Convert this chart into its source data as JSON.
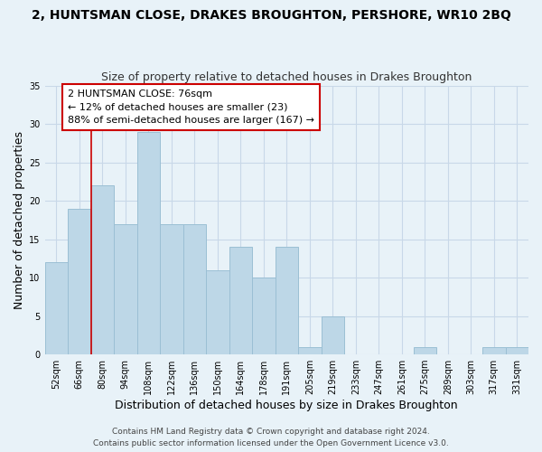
{
  "title": "2, HUNTSMAN CLOSE, DRAKES BROUGHTON, PERSHORE, WR10 2BQ",
  "subtitle": "Size of property relative to detached houses in Drakes Broughton",
  "xlabel": "Distribution of detached houses by size in Drakes Broughton",
  "ylabel": "Number of detached properties",
  "bar_labels": [
    "52sqm",
    "66sqm",
    "80sqm",
    "94sqm",
    "108sqm",
    "122sqm",
    "136sqm",
    "150sqm",
    "164sqm",
    "178sqm",
    "191sqm",
    "205sqm",
    "219sqm",
    "233sqm",
    "247sqm",
    "261sqm",
    "275sqm",
    "289sqm",
    "303sqm",
    "317sqm",
    "331sqm"
  ],
  "bar_values": [
    12,
    19,
    22,
    17,
    29,
    17,
    17,
    11,
    14,
    10,
    14,
    1,
    5,
    0,
    0,
    0,
    1,
    0,
    0,
    1,
    1
  ],
  "bar_color": "#bdd7e7",
  "bar_edge_color": "#9bbfd4",
  "annotation_text": "2 HUNTSMAN CLOSE: 76sqm\n← 12% of detached houses are smaller (23)\n88% of semi-detached houses are larger (167) →",
  "annotation_box_color": "#ffffff",
  "annotation_box_edge": "#cc0000",
  "ylim": [
    0,
    35
  ],
  "yticks": [
    0,
    5,
    10,
    15,
    20,
    25,
    30,
    35
  ],
  "grid_color": "#c8d8e8",
  "background_color": "#e8f2f8",
  "footer_line1": "Contains HM Land Registry data © Crown copyright and database right 2024.",
  "footer_line2": "Contains public sector information licensed under the Open Government Licence v3.0.",
  "title_fontsize": 10,
  "subtitle_fontsize": 9,
  "axis_label_fontsize": 9,
  "tick_fontsize": 7,
  "annotation_fontsize": 8,
  "footer_fontsize": 6.5,
  "ref_line_bar_index": 2
}
